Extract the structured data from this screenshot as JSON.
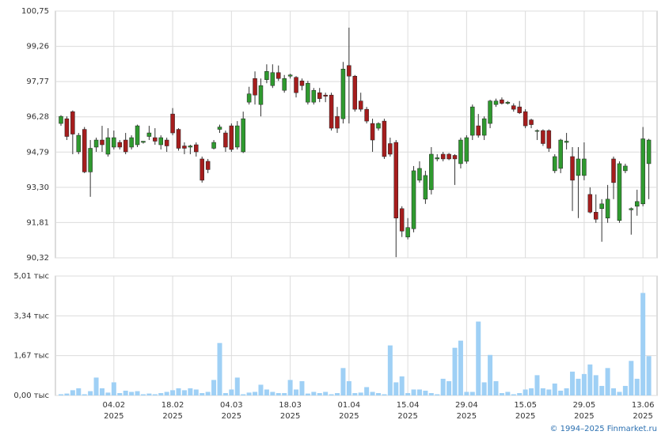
{
  "chart_data": {
    "type": "candlestick",
    "categories": [
      null,
      null,
      null,
      null,
      null,
      null,
      null,
      null,
      null,
      "04.02",
      null,
      null,
      null,
      null,
      null,
      null,
      null,
      null,
      null,
      "18.02",
      null,
      null,
      null,
      null,
      null,
      null,
      null,
      null,
      null,
      "04.03",
      null,
      null,
      null,
      null,
      null,
      null,
      null,
      null,
      null,
      "18.03",
      null,
      null,
      null,
      null,
      null,
      null,
      null,
      null,
      null,
      "01.04",
      null,
      null,
      null,
      null,
      null,
      null,
      null,
      null,
      null,
      "15.04",
      null,
      null,
      null,
      null,
      null,
      null,
      null,
      null,
      null,
      "29.04",
      null,
      null,
      null,
      null,
      null,
      null,
      null,
      null,
      null,
      "15.05",
      null,
      null,
      null,
      null,
      null,
      null,
      null,
      null,
      null,
      "29.05",
      null,
      null,
      null,
      null,
      null,
      null,
      null,
      null,
      null,
      "13.06",
      null
    ],
    "category_years": [
      null,
      null,
      null,
      null,
      null,
      null,
      null,
      null,
      null,
      "2025",
      null,
      null,
      null,
      null,
      null,
      null,
      null,
      null,
      null,
      "2025",
      null,
      null,
      null,
      null,
      null,
      null,
      null,
      null,
      null,
      "2025",
      null,
      null,
      null,
      null,
      null,
      null,
      null,
      null,
      null,
      "2025",
      null,
      null,
      null,
      null,
      null,
      null,
      null,
      null,
      null,
      "2025",
      null,
      null,
      null,
      null,
      null,
      null,
      null,
      null,
      null,
      "2025",
      null,
      null,
      null,
      null,
      null,
      null,
      null,
      null,
      null,
      "2025",
      null,
      null,
      null,
      null,
      null,
      null,
      null,
      null,
      null,
      "2025",
      null,
      null,
      null,
      null,
      null,
      null,
      null,
      null,
      null,
      "2025",
      null,
      null,
      null,
      null,
      null,
      null,
      null,
      null,
      null,
      "2025",
      null
    ],
    "open": [
      96.0,
      96.2,
      96.5,
      94.8,
      95.75,
      93.95,
      95.0,
      95.3,
      94.7,
      95.0,
      95.2,
      95.3,
      95.0,
      95.1,
      95.2,
      95.45,
      95.4,
      95.1,
      95.3,
      96.4,
      95.75,
      95.05,
      95.0,
      95.1,
      94.5,
      94.4,
      94.95,
      95.75,
      95.6,
      95.9,
      95.0,
      94.8,
      96.9,
      97.9,
      96.8,
      97.85,
      97.6,
      98.15,
      97.4,
      98.0,
      97.95,
      97.8,
      96.9,
      96.9,
      97.3,
      97.2,
      97.2,
      96.3,
      96.2,
      98.45,
      98.0,
      96.95,
      96.6,
      96.0,
      95.8,
      96.1,
      95.15,
      95.2,
      92.4,
      91.2,
      91.55,
      93.6,
      92.8,
      93.2,
      94.5,
      94.7,
      94.7,
      94.65,
      94.3,
      94.4,
      95.5,
      95.9,
      95.5,
      96.0,
      96.8,
      97.0,
      96.85,
      96.75,
      96.7,
      96.5,
      96.15,
      95.7,
      95.7,
      95.7,
      94.0,
      94.1,
      95.2,
      94.6,
      93.8,
      93.8,
      93.0,
      92.25,
      92.4,
      92.0,
      94.5,
      91.9,
      94.0,
      92.35,
      92.5,
      92.6,
      94.3
    ],
    "high": [
      96.35,
      96.3,
      96.55,
      95.6,
      95.85,
      95.3,
      95.4,
      95.9,
      95.8,
      95.7,
      95.3,
      95.6,
      95.5,
      95.95,
      95.25,
      95.9,
      95.8,
      95.5,
      95.4,
      96.65,
      95.8,
      95.2,
      95.1,
      95.2,
      94.6,
      94.5,
      95.3,
      95.95,
      95.7,
      96.0,
      96.1,
      96.5,
      97.55,
      98.2,
      97.9,
      98.5,
      98.5,
      98.45,
      98.05,
      98.1,
      98.0,
      97.9,
      97.8,
      97.5,
      97.5,
      97.3,
      97.3,
      96.7,
      98.6,
      100.05,
      98.05,
      97.3,
      96.7,
      96.2,
      96.05,
      96.2,
      95.4,
      95.3,
      92.5,
      92.0,
      94.2,
      94.4,
      94.0,
      95.0,
      94.7,
      94.8,
      94.75,
      94.7,
      95.4,
      95.5,
      96.8,
      96.4,
      96.3,
      97.0,
      97.05,
      97.1,
      96.95,
      96.85,
      96.95,
      96.6,
      96.2,
      95.75,
      95.75,
      95.75,
      94.7,
      95.35,
      95.6,
      95.0,
      95.0,
      95.2,
      93.3,
      93.0,
      92.8,
      93.4,
      94.6,
      94.4,
      94.3,
      92.45,
      93.2,
      95.85,
      95.35
    ],
    "low": [
      95.9,
      95.3,
      94.7,
      94.7,
      93.9,
      92.9,
      94.8,
      94.8,
      94.6,
      94.9,
      94.9,
      94.7,
      94.9,
      95.0,
      95.15,
      95.3,
      95.1,
      94.9,
      94.8,
      95.5,
      94.85,
      94.7,
      94.7,
      94.6,
      93.5,
      93.9,
      94.9,
      95.6,
      94.8,
      94.8,
      94.9,
      94.75,
      96.8,
      96.8,
      96.3,
      97.7,
      97.5,
      97.8,
      97.3,
      97.9,
      97.1,
      97.4,
      96.8,
      96.8,
      96.9,
      96.9,
      95.7,
      95.6,
      96.0,
      96.0,
      96.5,
      96.5,
      96.0,
      94.8,
      95.7,
      94.5,
      94.6,
      90.35,
      91.2,
      91.1,
      91.4,
      93.5,
      92.6,
      93.0,
      94.4,
      94.4,
      94.45,
      93.4,
      94.1,
      94.3,
      95.3,
      95.4,
      95.3,
      95.8,
      96.7,
      96.8,
      96.8,
      96.5,
      96.4,
      95.8,
      95.8,
      95.3,
      95.05,
      94.8,
      93.9,
      93.9,
      94.9,
      92.3,
      92.0,
      93.6,
      92.2,
      91.8,
      91.0,
      91.8,
      92.8,
      91.8,
      93.9,
      91.3,
      92.1,
      92.5,
      92.8
    ],
    "close": [
      96.3,
      95.45,
      95.55,
      95.5,
      93.95,
      94.95,
      95.3,
      95.1,
      95.4,
      95.4,
      95.0,
      94.8,
      95.4,
      95.9,
      95.25,
      95.6,
      95.25,
      95.4,
      95.05,
      95.6,
      94.95,
      94.95,
      95.05,
      94.8,
      93.6,
      94.05,
      95.2,
      95.85,
      95.0,
      94.9,
      95.9,
      96.2,
      97.25,
      97.2,
      97.6,
      98.2,
      98.15,
      97.9,
      97.9,
      98.05,
      97.3,
      97.6,
      97.7,
      97.4,
      97.05,
      97.15,
      95.8,
      95.8,
      98.3,
      98.0,
      96.6,
      96.6,
      96.1,
      95.3,
      96.0,
      94.6,
      94.7,
      92.0,
      91.45,
      91.6,
      94.0,
      94.1,
      93.8,
      94.7,
      94.55,
      94.5,
      94.5,
      94.5,
      95.3,
      95.4,
      96.7,
      95.5,
      96.2,
      96.95,
      96.95,
      96.85,
      96.9,
      96.6,
      96.45,
      95.9,
      95.95,
      95.7,
      95.15,
      94.95,
      94.6,
      95.3,
      95.25,
      93.6,
      94.5,
      94.5,
      92.25,
      91.95,
      92.6,
      92.8,
      93.5,
      94.3,
      94.2,
      92.4,
      92.7,
      95.35,
      95.3
    ],
    "volume": [
      0.05,
      0.08,
      0.22,
      0.3,
      0.05,
      0.18,
      0.75,
      0.3,
      0.12,
      0.55,
      0.1,
      0.2,
      0.15,
      0.18,
      0.05,
      0.08,
      0.05,
      0.1,
      0.15,
      0.22,
      0.3,
      0.22,
      0.3,
      0.25,
      0.1,
      0.15,
      0.65,
      2.2,
      0.1,
      0.25,
      0.75,
      0.05,
      0.12,
      0.15,
      0.45,
      0.25,
      0.15,
      0.1,
      0.1,
      0.65,
      0.25,
      0.6,
      0.08,
      0.15,
      0.1,
      0.15,
      0.05,
      0.1,
      1.15,
      0.6,
      0.1,
      0.12,
      0.35,
      0.15,
      0.1,
      0.05,
      2.1,
      0.55,
      0.8,
      0.1,
      0.25,
      0.25,
      0.2,
      0.1,
      0.05,
      0.7,
      0.6,
      2.0,
      2.3,
      0.15,
      0.15,
      3.1,
      0.55,
      1.7,
      0.6,
      0.1,
      0.15,
      0.05,
      0.1,
      0.25,
      0.3,
      0.85,
      0.3,
      0.25,
      0.5,
      0.2,
      0.3,
      1.0,
      0.7,
      0.9,
      1.3,
      0.85,
      0.4,
      1.15,
      0.3,
      0.15,
      0.4,
      1.45,
      0.7,
      4.3,
      1.65
    ],
    "up_color": "#2f9a2f",
    "down_color": "#a51d1d",
    "volume_color": "#9fd0f5",
    "ylim": [
      90.32,
      100.75
    ],
    "yticks": [
      {
        "value": 90.32,
        "label": "90,32"
      },
      {
        "value": 91.81,
        "label": "91,81"
      },
      {
        "value": 93.3,
        "label": "93,30"
      },
      {
        "value": 94.79,
        "label": "94,79"
      },
      {
        "value": 96.28,
        "label": "96,28"
      },
      {
        "value": 97.77,
        "label": "97,77"
      },
      {
        "value": 99.26,
        "label": "99,26"
      },
      {
        "value": 100.75,
        "label": "100,75"
      }
    ],
    "volume_ylim": [
      0,
      5.01
    ],
    "volume_yticks": [
      {
        "value": 0,
        "label": "0,00 тыс"
      },
      {
        "value": 1.67,
        "label": "1,67 тыс"
      },
      {
        "value": 3.34,
        "label": "3,34 тыс"
      },
      {
        "value": 5.01,
        "label": "5,01 тыс"
      }
    ],
    "grid": true,
    "copyright": "© 1994–2025 Finmarket.ru"
  }
}
